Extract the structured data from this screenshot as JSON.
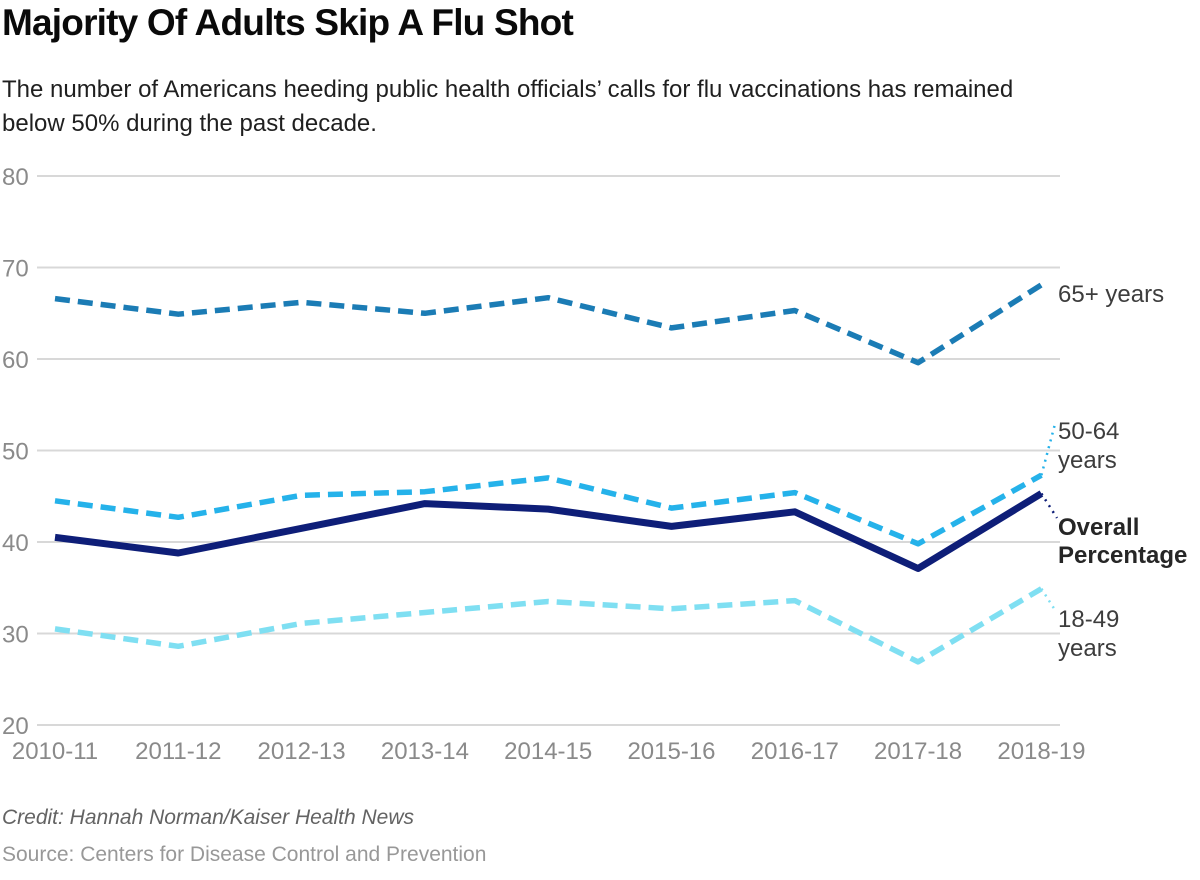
{
  "chart_data": {
    "type": "line",
    "title": "Majority Of Adults Skip A Flu Shot",
    "subtitle_lines": [
      "The number of Americans heeding public health officials’ calls for flu vaccinations has remained",
      "below 50% during the past decade."
    ],
    "categories": [
      "2010-11",
      "2011-12",
      "2012-13",
      "2013-14",
      "2014-15",
      "2015-16",
      "2016-17",
      "2017-18",
      "2018-19"
    ],
    "series": [
      {
        "id": "65plus",
        "label": "65+ years",
        "color": "#1b7cb5",
        "line_style": "dashed",
        "stroke_width": 5.5,
        "values": [
          66.6,
          64.9,
          66.2,
          65.0,
          66.7,
          63.4,
          65.3,
          59.6,
          68.1
        ]
      },
      {
        "id": "50-64",
        "label": "50-64 years",
        "color": "#25b2ea",
        "line_style": "dashed",
        "stroke_width": 5.5,
        "values": [
          44.5,
          42.7,
          45.1,
          45.5,
          47.0,
          43.7,
          45.4,
          39.8,
          47.3
        ]
      },
      {
        "id": "overall",
        "label": "Overall Percentage",
        "color": "#0e1e78",
        "line_style": "solid",
        "stroke_width": 7,
        "values": [
          40.5,
          38.8,
          41.5,
          44.2,
          43.6,
          41.7,
          43.3,
          37.1,
          45.3
        ]
      },
      {
        "id": "18-49",
        "label": "18-49 years",
        "color": "#7fdff2",
        "line_style": "dashed",
        "stroke_width": 5.5,
        "values": [
          30.5,
          28.6,
          31.1,
          32.3,
          33.5,
          32.7,
          33.6,
          26.9,
          34.9
        ]
      }
    ],
    "ylim": [
      20,
      80
    ],
    "yticks": [
      80,
      70,
      60,
      50,
      40,
      30,
      20
    ],
    "grid": "horizontal-only",
    "legend_position": "right-edge-annotations"
  },
  "footer": {
    "credit": "Credit: Hannah Norman/Kaiser Health News",
    "source": "Source: Centers for Disease Control and Prevention"
  },
  "colors": {
    "gridline": "#d8d8d8",
    "axis_text": "#8a8a8a",
    "title_text": "#0a0a0a",
    "series_65plus": "#1b7cb5",
    "series_50_64": "#25b2ea",
    "series_overall": "#0e1e78",
    "series_18_49": "#7fdff2"
  }
}
